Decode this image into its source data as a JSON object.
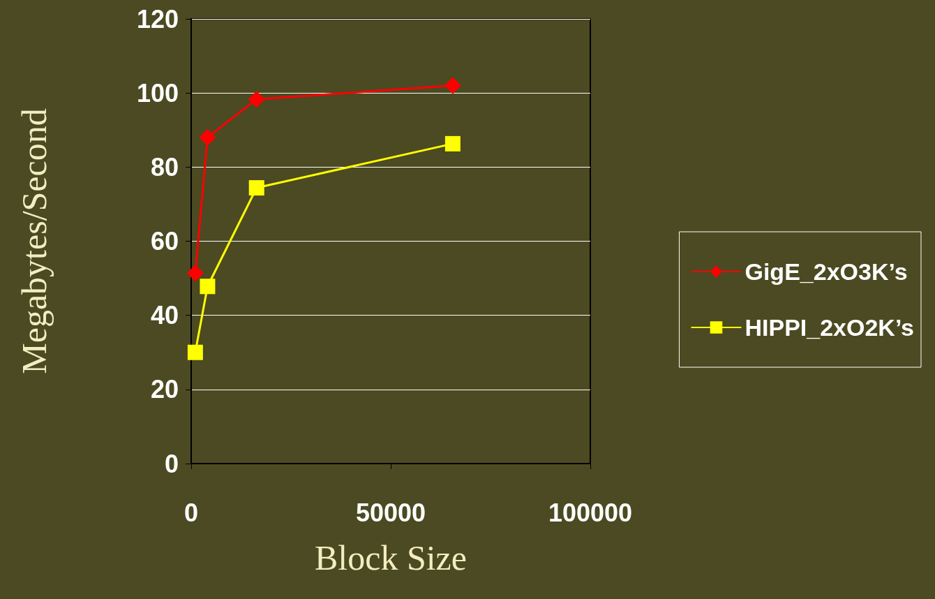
{
  "chart_data": {
    "type": "line",
    "xlabel": "Block Size",
    "ylabel": "Megabytes/Second",
    "xlim": [
      0,
      100000
    ],
    "xticks": [
      0,
      50000,
      100000
    ],
    "ylim": [
      0,
      120
    ],
    "yticks": [
      0,
      20,
      40,
      60,
      80,
      100,
      120
    ],
    "grid": "y",
    "legend": "right",
    "series": [
      {
        "name": "GigE_2xO3K’s",
        "color": "#ff0000",
        "marker": "diamond",
        "x": [
          1024,
          4096,
          16384,
          65536
        ],
        "values": [
          51.4,
          88,
          98.3,
          102
        ]
      },
      {
        "name": "HIPPI_2xO2K’s",
        "color": "#ffff00",
        "marker": "square",
        "x": [
          1024,
          4096,
          16384,
          65536
        ],
        "values": [
          30,
          47.8,
          74.4,
          86.3
        ]
      }
    ]
  }
}
